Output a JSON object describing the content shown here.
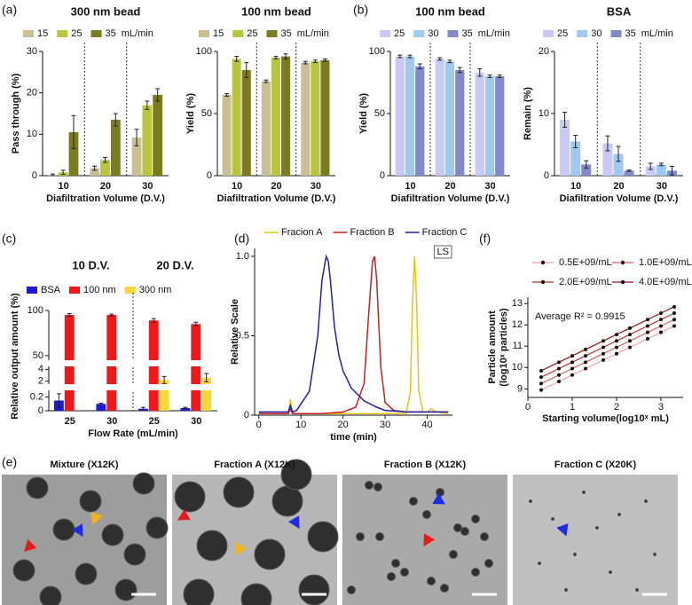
{
  "panel_labels": [
    "(a)",
    "(b)",
    "(c)",
    "(d)",
    "(e)",
    "(f)"
  ],
  "chart_data": [
    {
      "type": "bar",
      "title": "300 nm bead",
      "categories": [
        "10",
        "20",
        "30"
      ],
      "xlabel": "Diafiltration Volume (D.V.)",
      "ylabel": "Pass through (%)",
      "legend_unit": "mL/min",
      "ylim": [
        0,
        30
      ],
      "yticks": [
        0,
        10,
        20,
        30
      ],
      "series": [
        {
          "name": "15",
          "color": "#c9bf93",
          "values": [
            0.2,
            1.8,
            9.2
          ],
          "errors": [
            0.2,
            0.5,
            2
          ]
        },
        {
          "name": "25",
          "color": "#b9c53c",
          "values": [
            0.8,
            3.8,
            17
          ],
          "errors": [
            0.5,
            0.6,
            1
          ]
        },
        {
          "name": "35",
          "color": "#7b7b1f",
          "values": [
            10.5,
            13.5,
            19.5
          ],
          "errors": [
            4,
            1.5,
            1.5
          ]
        }
      ]
    },
    {
      "type": "bar",
      "title": "100 nm bead",
      "categories": [
        "10",
        "20",
        "30"
      ],
      "xlabel": "Diafiltration Volume (D.V.)",
      "ylabel": "Yield (%)",
      "legend_unit": "mL/min",
      "ylim": [
        0,
        100
      ],
      "yticks": [
        0,
        50,
        100
      ],
      "series": [
        {
          "name": "15",
          "color": "#c9bf93",
          "values": [
            65,
            76,
            91
          ],
          "errors": [
            1,
            1,
            1
          ]
        },
        {
          "name": "25",
          "color": "#b9c53c",
          "values": [
            94,
            95,
            92
          ],
          "errors": [
            2,
            1,
            1
          ]
        },
        {
          "name": "35",
          "color": "#7b7b1f",
          "values": [
            85,
            96,
            93
          ],
          "errors": [
            6,
            2,
            1
          ]
        }
      ]
    },
    {
      "type": "bar",
      "title": "100 nm bead",
      "categories": [
        "10",
        "20",
        "30"
      ],
      "xlabel": "Diafiltration Volume (D.V.)",
      "ylabel": "Yield (%)",
      "legend_unit": "mL/min",
      "ylim": [
        0,
        100
      ],
      "yticks": [
        0,
        50,
        100
      ],
      "series": [
        {
          "name": "25",
          "color": "#c8c9f5",
          "values": [
            96,
            94,
            83
          ],
          "errors": [
            1,
            1,
            3
          ]
        },
        {
          "name": "30",
          "color": "#9fc9ef",
          "values": [
            96,
            92,
            80
          ],
          "errors": [
            1,
            1,
            1
          ]
        },
        {
          "name": "35",
          "color": "#8289c9",
          "values": [
            88,
            85,
            80
          ],
          "errors": [
            2,
            2,
            1
          ]
        }
      ]
    },
    {
      "type": "bar",
      "title": "BSA",
      "categories": [
        "10",
        "20",
        "30"
      ],
      "xlabel": "Diafiltration Volume (D.V.)",
      "ylabel": "Remain (%)",
      "legend_unit": "mL/min",
      "ylim": [
        0,
        20
      ],
      "yticks": [
        0,
        10,
        20
      ],
      "series": [
        {
          "name": "25",
          "color": "#c8c9f5",
          "values": [
            9,
            5.2,
            1.5
          ],
          "errors": [
            1.2,
            1.2,
            0.5
          ]
        },
        {
          "name": "30",
          "color": "#9fc9ef",
          "values": [
            5.5,
            3.5,
            1.8
          ],
          "errors": [
            1,
            1.2,
            0.2
          ]
        },
        {
          "name": "35",
          "color": "#8289c9",
          "values": [
            1.8,
            0.8,
            0.8
          ],
          "errors": [
            0.6,
            0.1,
            0.7
          ]
        }
      ]
    },
    {
      "type": "bar",
      "group_labels": [
        "10 D.V.",
        "20 D.V."
      ],
      "categories": [
        "25",
        "30",
        "25",
        "30"
      ],
      "xlabel": "Flow Rate (mL/min)",
      "ylabel": "Relative output amount (%)",
      "ylim": [
        0,
        100
      ],
      "ylim_segments": [
        [
          0,
          0.3
        ],
        [
          1.5,
          4.5
        ],
        [
          45,
          100
        ]
      ],
      "yticks": [
        0,
        0.2,
        2,
        4,
        50,
        100
      ],
      "series": [
        {
          "name": "BSA",
          "color": "#1a1adb",
          "values": [
            0.15,
            0.1,
            0.03,
            0.04
          ],
          "errors": [
            0.1,
            0.01,
            0.02,
            0.01
          ]
        },
        {
          "name": "100 nm",
          "color": "#f01818",
          "values": [
            95,
            95,
            89,
            85
          ],
          "errors": [
            1.5,
            1,
            2,
            2
          ]
        },
        {
          "name": "300 nm",
          "color": "#f5d838",
          "values": [
            0,
            0,
            2.2,
            2.6
          ],
          "errors": [
            0,
            0,
            0.6,
            0.7
          ]
        }
      ]
    },
    {
      "type": "line",
      "xlabel": "time (min)",
      "ylabel": "Relative Scale",
      "annotation": "LS",
      "xlim": [
        -1,
        46
      ],
      "xticks": [
        0,
        10,
        20,
        30,
        40
      ],
      "ylim": [
        0,
        1.05
      ],
      "yticks": [
        0,
        0.5,
        {
          "value": 1,
          "label": "1.0"
        }
      ],
      "series": [
        {
          "name": "Fracion A",
          "color": "#e8c31a",
          "x": [
            0,
            7,
            7.5,
            8,
            30,
            35,
            36,
            36.5,
            37,
            37.5,
            38,
            39,
            40,
            41,
            42,
            45
          ],
          "values": [
            0.01,
            0.01,
            0.1,
            0.01,
            0.01,
            0.01,
            0.15,
            0.7,
            1.0,
            0.7,
            0.15,
            0.02,
            0.02,
            0.04,
            0.02,
            0.01
          ]
        },
        {
          "name": "Fraction B",
          "color": "#c8201e",
          "x": [
            0,
            7,
            7.5,
            8,
            15,
            20,
            23,
            25,
            26,
            27,
            27.5,
            28,
            29,
            30,
            32,
            35,
            45
          ],
          "values": [
            0.01,
            0.01,
            0.04,
            0.01,
            0.01,
            0.02,
            0.05,
            0.2,
            0.6,
            0.97,
            1.0,
            0.85,
            0.3,
            0.08,
            0.03,
            0.02,
            0.02
          ]
        },
        {
          "name": "Fraction C",
          "color": "#2020b0",
          "x": [
            0,
            7,
            7.5,
            8,
            9,
            12,
            14,
            15,
            16,
            16.5,
            17,
            18,
            19,
            20,
            22,
            25,
            28,
            30,
            35,
            40,
            45
          ],
          "values": [
            0.02,
            0.02,
            0.06,
            0.02,
            0.03,
            0.15,
            0.5,
            0.85,
            1.0,
            0.97,
            0.85,
            0.55,
            0.38,
            0.28,
            0.17,
            0.09,
            0.05,
            0.03,
            0.02,
            0.02,
            0.02
          ]
        }
      ]
    },
    {
      "type": "scatter",
      "xlabel": "Starting volume(log10ˣ mL)",
      "ylabel": [
        "Particle amount",
        "(log10ˣ particles)"
      ],
      "annotation": "Average R² = 0.9915",
      "xlim": [
        0,
        3.5
      ],
      "xticks": [
        0,
        1,
        2,
        3
      ],
      "ylim": [
        8.6,
        13.3
      ],
      "yticks": [
        9,
        10,
        11,
        12,
        13
      ],
      "x": [
        0.3,
        0.7,
        1.0,
        1.3,
        1.7,
        2.0,
        2.3,
        2.7,
        3.0,
        3.3
      ],
      "series": [
        {
          "name": "0.5E+09/mL",
          "color": "#f2a0a0",
          "values": [
            8.95,
            9.35,
            9.65,
            9.95,
            10.35,
            10.65,
            10.95,
            11.35,
            11.65,
            11.95
          ]
        },
        {
          "name": "1.0E+09/mL",
          "color": "#e06060",
          "values": [
            9.25,
            9.65,
            9.95,
            10.25,
            10.65,
            10.95,
            11.25,
            11.65,
            11.95,
            12.25
          ]
        },
        {
          "name": "2.0E+09/mL",
          "color": "#c03030",
          "values": [
            9.55,
            9.95,
            10.25,
            10.55,
            10.95,
            11.25,
            11.55,
            11.95,
            12.25,
            12.55
          ]
        },
        {
          "name": "4.0E+09/mL",
          "color": "#a01010",
          "values": [
            9.85,
            10.25,
            10.55,
            10.85,
            11.25,
            11.55,
            11.85,
            12.25,
            12.55,
            12.85
          ]
        }
      ]
    }
  ],
  "micrographs": [
    {
      "title": "Mixture (X12K)"
    },
    {
      "title": "Fraction A (X12K)"
    },
    {
      "title": "Fraction B (X12K)"
    },
    {
      "title": "Fraction C (X20K)"
    }
  ]
}
